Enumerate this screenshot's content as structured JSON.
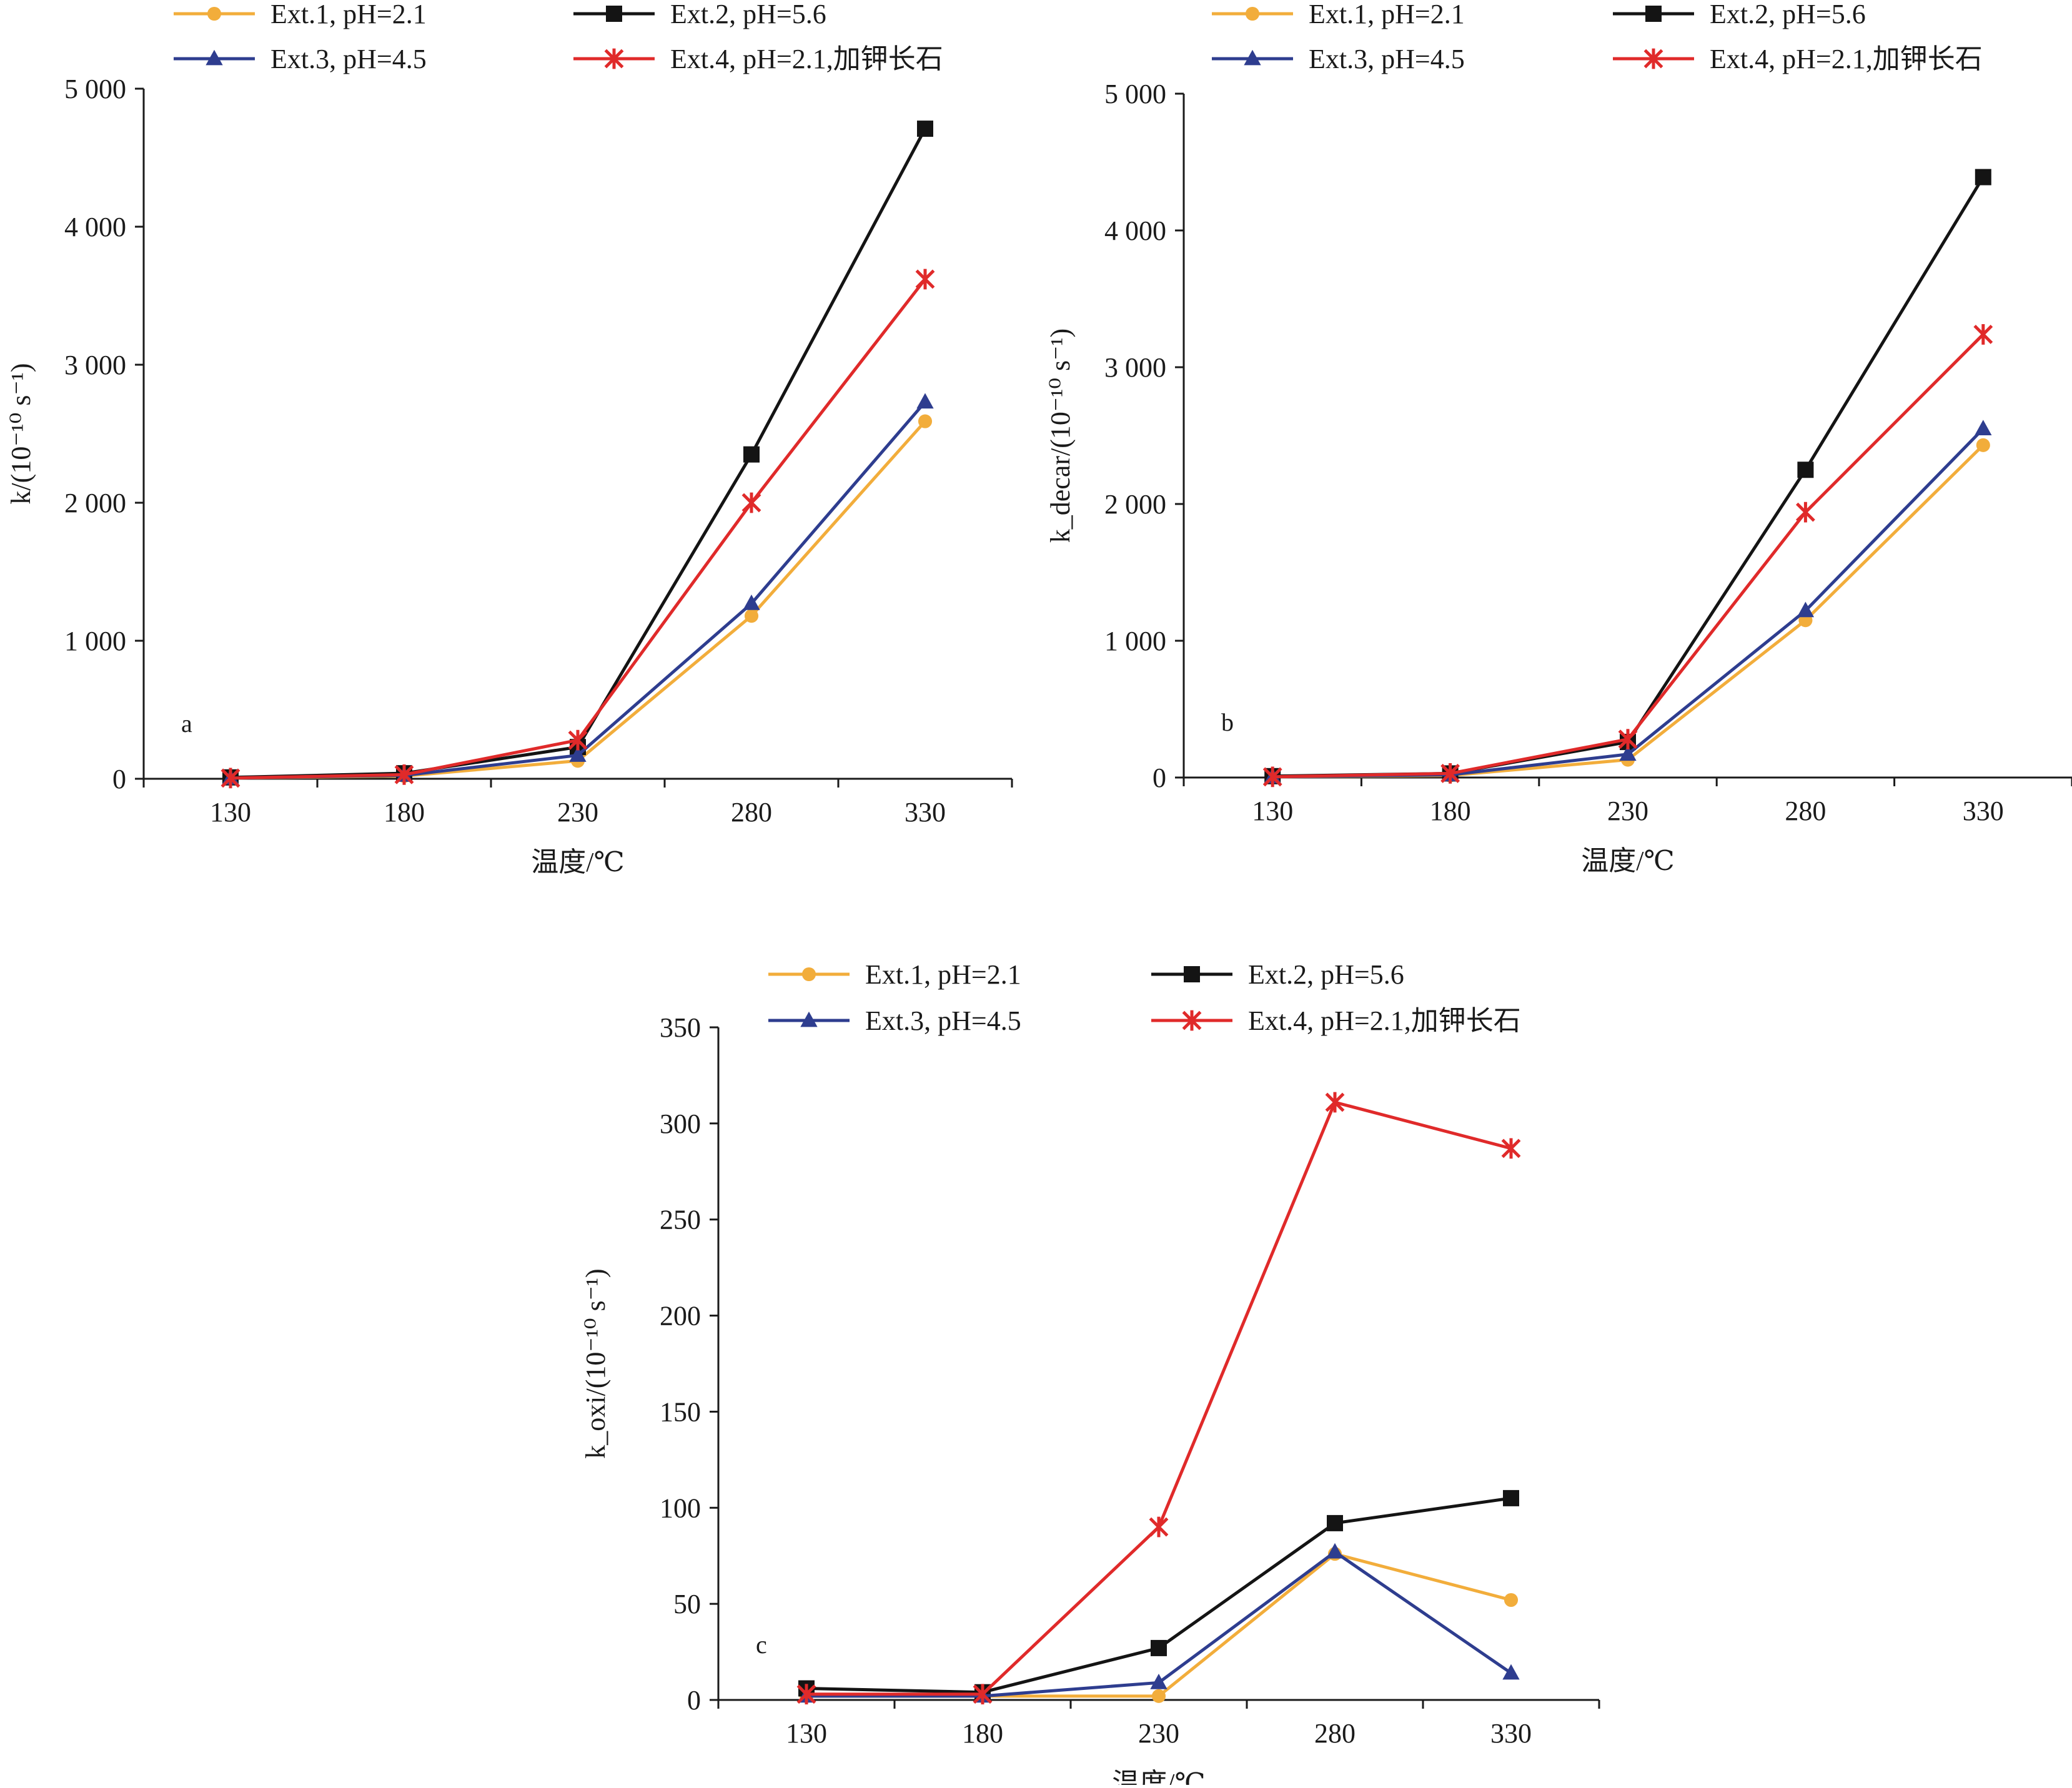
{
  "colors": {
    "background": "#ffffff",
    "axis": "#1a1a1a",
    "series": {
      "Ext.1, pH=2.1": "#f2ad3b",
      "Ext.2, pH=5.6": "#141414",
      "Ext.3, pH=4.5": "#2e3d8f",
      "Ext.4, pH=2.1,加钾长石": "#e02a2a"
    }
  },
  "chart_data": [
    {
      "panel": "a",
      "type": "line",
      "xlabel": "温度/℃",
      "ylabel": "k/(10⁻¹⁰ s⁻¹)",
      "x": [
        130,
        180,
        230,
        280,
        330
      ],
      "x_tick_labels": [
        "130",
        "180",
        "230",
        "280",
        "330"
      ],
      "ylim": [
        0,
        5000
      ],
      "y_ticks": [
        0,
        1000,
        2000,
        3000,
        4000,
        5000
      ],
      "y_tick_labels": [
        "0",
        "1 000",
        "2 000",
        "3 000",
        "4 000",
        "5 000"
      ],
      "grid": false,
      "legend": "top",
      "series": [
        {
          "name": "Ext.1, pH=2.1",
          "marker": "circle",
          "values": [
            5,
            20,
            130,
            1180,
            2590
          ]
        },
        {
          "name": "Ext.2, pH=5.6",
          "marker": "square",
          "values": [
            10,
            40,
            230,
            2350,
            4710
          ]
        },
        {
          "name": "Ext.3, pH=4.5",
          "marker": "triangle",
          "values": [
            5,
            25,
            170,
            1270,
            2730
          ]
        },
        {
          "name": "Ext.4, pH=2.1,加钾长石",
          "marker": "star",
          "values": [
            5,
            30,
            280,
            2000,
            3620
          ]
        }
      ]
    },
    {
      "panel": "b",
      "type": "line",
      "xlabel": "温度/℃",
      "ylabel": "k_decar/(10⁻¹⁰ s⁻¹)",
      "x": [
        130,
        180,
        230,
        280,
        330
      ],
      "x_tick_labels": [
        "130",
        "180",
        "230",
        "280",
        "330"
      ],
      "ylim": [
        0,
        5000
      ],
      "y_ticks": [
        0,
        1000,
        2000,
        3000,
        4000,
        5000
      ],
      "y_tick_labels": [
        "0",
        "1 000",
        "2 000",
        "3 000",
        "4 000",
        "5 000"
      ],
      "grid": false,
      "legend": "top",
      "series": [
        {
          "name": "Ext.1, pH=2.1",
          "marker": "circle",
          "values": [
            5,
            15,
            130,
            1150,
            2430
          ]
        },
        {
          "name": "Ext.2, pH=5.6",
          "marker": "square",
          "values": [
            10,
            30,
            260,
            2250,
            4390
          ]
        },
        {
          "name": "Ext.3, pH=4.5",
          "marker": "triangle",
          "values": [
            5,
            20,
            170,
            1220,
            2550
          ]
        },
        {
          "name": "Ext.4, pH=2.1,加钾长石",
          "marker": "star",
          "values": [
            5,
            30,
            280,
            1940,
            3240
          ]
        }
      ]
    },
    {
      "panel": "c",
      "type": "line",
      "xlabel": "温度/℃",
      "ylabel": "k_oxi/(10⁻¹⁰ s⁻¹)",
      "x": [
        130,
        180,
        230,
        280,
        330
      ],
      "x_tick_labels": [
        "130",
        "180",
        "230",
        "280",
        "330"
      ],
      "ylim": [
        0,
        350
      ],
      "y_ticks": [
        0,
        50,
        100,
        150,
        200,
        250,
        300,
        350
      ],
      "y_tick_labels": [
        "0",
        "50",
        "100",
        "150",
        "200",
        "250",
        "300",
        "350"
      ],
      "grid": false,
      "legend": "top",
      "series": [
        {
          "name": "Ext.1, pH=2.1",
          "marker": "circle",
          "values": [
            2,
            2,
            2,
            76,
            52
          ]
        },
        {
          "name": "Ext.2, pH=5.6",
          "marker": "square",
          "values": [
            6,
            4,
            27,
            92,
            105
          ]
        },
        {
          "name": "Ext.3, pH=4.5",
          "marker": "triangle",
          "values": [
            2,
            2,
            9,
            77,
            14
          ]
        },
        {
          "name": "Ext.4, pH=2.1,加钾长石",
          "marker": "star",
          "values": [
            3,
            3,
            90,
            311,
            287
          ]
        }
      ]
    }
  ]
}
